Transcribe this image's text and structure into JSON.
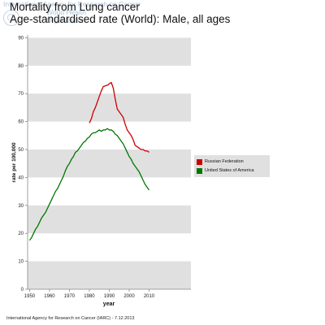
{
  "watermark": {
    "line1": "International Agency for Research on Cancer",
    "line2": "World Health",
    "line3": "Organization"
  },
  "footer": "International Agency for Research on Cancer (IARC) - 7.12.2013",
  "colors": {
    "russia": "#cc0000",
    "usa": "#007700",
    "band": "#e0e0e0"
  },
  "chart_data": {
    "type": "line",
    "title": "Mortality from Lung cancer",
    "subtitle": "Age-standardised rate (World): Male, all ages",
    "xlabel": "year",
    "ylabel": "rate per 100,000",
    "xlim": [
      1949,
      2031
    ],
    "ylim": [
      0,
      91
    ],
    "xticks": [
      1950,
      1960,
      1970,
      1980,
      1990,
      2000,
      2010
    ],
    "xtick_labels": [
      "1950",
      "1960",
      "1970",
      "1980",
      "1990",
      "2000",
      "2010"
    ],
    "yticks": [
      0,
      10,
      20,
      30,
      40,
      50,
      60,
      70,
      80,
      90
    ],
    "ytick_labels": [
      "0",
      "10",
      "20",
      "30",
      "40",
      "50",
      "60",
      "70",
      "80",
      "90"
    ],
    "grid": "alternating horizontal bands",
    "legend_position": "right",
    "series": [
      {
        "name": "Russian Federation",
        "color": "#cc0000",
        "x": [
          1980,
          1981,
          1982,
          1983,
          1984,
          1985,
          1986,
          1987,
          1988,
          1989,
          1990,
          1991,
          1992,
          1993,
          1994,
          1995,
          1996,
          1997,
          1998,
          1999,
          2000,
          2001,
          2002,
          2003,
          2004,
          2005,
          2006,
          2007,
          2008,
          2009,
          2010
        ],
        "y": [
          59.5,
          61,
          63.5,
          65,
          67,
          69,
          71,
          72.5,
          72.8,
          73,
          73.5,
          74,
          72,
          68,
          64.5,
          63.5,
          62.5,
          61.5,
          59,
          57,
          56,
          55,
          53.5,
          51.5,
          51,
          50.5,
          50,
          50,
          49.5,
          49.5,
          49
        ]
      },
      {
        "name": "United States of America",
        "color": "#007700",
        "x": [
          1950,
          1951,
          1952,
          1953,
          1954,
          1955,
          1956,
          1957,
          1958,
          1959,
          1960,
          1961,
          1962,
          1963,
          1964,
          1965,
          1966,
          1967,
          1968,
          1969,
          1970,
          1971,
          1972,
          1973,
          1974,
          1975,
          1976,
          1977,
          1978,
          1979,
          1980,
          1981,
          1982,
          1983,
          1984,
          1985,
          1986,
          1987,
          1988,
          1989,
          1990,
          1991,
          1992,
          1993,
          1994,
          1995,
          1996,
          1997,
          1998,
          1999,
          2000,
          2001,
          2002,
          2003,
          2004,
          2005,
          2006,
          2007,
          2008,
          2009,
          2010
        ],
        "y": [
          17.5,
          18.5,
          20,
          21.5,
          22.5,
          24,
          25.5,
          26.5,
          27.5,
          29,
          30.5,
          32,
          33.5,
          35,
          36,
          37.5,
          39,
          40.5,
          42.5,
          44,
          45,
          46.5,
          47.5,
          49,
          49.5,
          50.5,
          51.5,
          52.5,
          53,
          54,
          54.5,
          55.5,
          56,
          56,
          56.5,
          57,
          56.5,
          57,
          57,
          57.5,
          57,
          57,
          56.5,
          55.5,
          55,
          54,
          53,
          52,
          50.5,
          49,
          47.5,
          46.5,
          45,
          44,
          43,
          42,
          40.5,
          39,
          37.5,
          36.5,
          35.5
        ]
      }
    ]
  }
}
